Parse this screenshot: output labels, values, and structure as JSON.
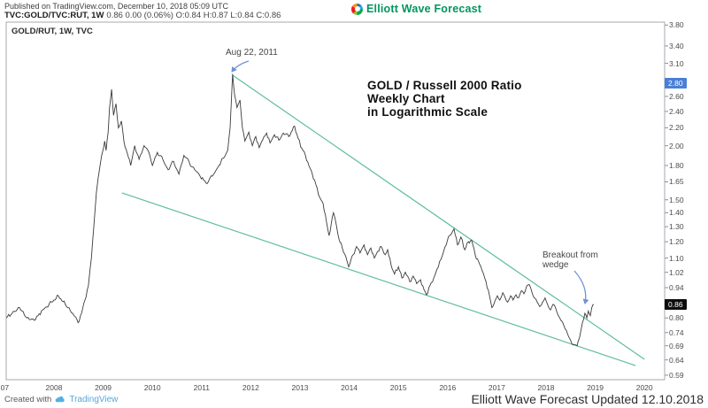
{
  "header": {
    "published_line": "Published on TradingView.com, December 10, 2018 05:09 UTC",
    "symbol_bold": "TVC:GOLD/TVC:RUT, 1W",
    "quote_line": "0.86 0.00 (0.06%) O:0.84 H:0.87 L:0.84 C:0.86",
    "brand": "Elliott Wave Forecast"
  },
  "chart": {
    "legend": "GOLD/RUT, 1W, TVC",
    "annotations": {
      "peak_label": "Aug 22, 2011",
      "title_line1": "GOLD / Russell 2000 Ratio",
      "title_line2": "Weekly Chart",
      "title_line3": "in Logarithmic Scale",
      "breakout_line1": "Breakout from",
      "breakout_line2": "wedge"
    }
  },
  "footer": {
    "created_with": "Created with",
    "tradingview": "TradingView",
    "credit": "Elliott Wave Forecast Updated 12.10.2018"
  },
  "chart_data": {
    "type": "line",
    "title": "GOLD / Russell 2000 Ratio Weekly Chart in Logarithmic Scale",
    "symbol": "TVC:GOLD/TVC:RUT",
    "timeframe": "1W",
    "scale": "logarithmic",
    "ohlc": {
      "open": 0.84,
      "high": 0.87,
      "low": 0.84,
      "close": 0.86,
      "change": "0.00",
      "change_pct": "0.06%"
    },
    "colors": {
      "trendline": "#5fbda1",
      "series": "#3a3b3d",
      "arrow": "#7191d1",
      "badge_blue": "#4a7fd6",
      "badge_black": "#0d0d0d",
      "brand_green": "#00965e",
      "tradingview_blue": "#54a8dd"
    },
    "x_ticks": [
      {
        "label": "07",
        "year": 2007
      },
      {
        "label": "2008",
        "year": 2008
      },
      {
        "label": "2009",
        "year": 2009
      },
      {
        "label": "2010",
        "year": 2010
      },
      {
        "label": "2011",
        "year": 2011
      },
      {
        "label": "2012",
        "year": 2012
      },
      {
        "label": "2013",
        "year": 2013
      },
      {
        "label": "2014",
        "year": 2014
      },
      {
        "label": "2015",
        "year": 2015
      },
      {
        "label": "2016",
        "year": 2016
      },
      {
        "label": "2017",
        "year": 2017
      },
      {
        "label": "2018",
        "year": 2018
      },
      {
        "label": "2019",
        "year": 2019
      },
      {
        "label": "2020",
        "year": 2020
      }
    ],
    "y_ticks": [
      {
        "label": "3.80",
        "value": 3.8
      },
      {
        "label": "3.40",
        "value": 3.4
      },
      {
        "label": "3.10",
        "value": 3.1
      },
      {
        "label": "2.80",
        "value": 2.8,
        "badge": "blue"
      },
      {
        "label": "2.60",
        "value": 2.6
      },
      {
        "label": "2.40",
        "value": 2.4
      },
      {
        "label": "2.20",
        "value": 2.2
      },
      {
        "label": "2.00",
        "value": 2.0
      },
      {
        "label": "1.80",
        "value": 1.8
      },
      {
        "label": "1.65",
        "value": 1.65
      },
      {
        "label": "1.50",
        "value": 1.5
      },
      {
        "label": "1.40",
        "value": 1.4
      },
      {
        "label": "1.30",
        "value": 1.3
      },
      {
        "label": "1.20",
        "value": 1.2
      },
      {
        "label": "1.10",
        "value": 1.1
      },
      {
        "label": "1.02",
        "value": 1.02
      },
      {
        "label": "0.94",
        "value": 0.94
      },
      {
        "label": "0.86",
        "value": 0.86,
        "badge": "black"
      },
      {
        "label": "0.80",
        "value": 0.8
      },
      {
        "label": "0.74",
        "value": 0.74
      },
      {
        "label": "0.69",
        "value": 0.69
      },
      {
        "label": "0.64",
        "value": 0.64
      },
      {
        "label": "0.59",
        "value": 0.59
      }
    ],
    "trendlines": [
      {
        "name": "wedge-upper-trendline",
        "from": [
          2011.63,
          2.91
        ],
        "to": [
          2020.0,
          0.642
        ]
      },
      {
        "name": "wedge-lower-trendline",
        "from": [
          2009.38,
          1.556
        ],
        "to": [
          2019.82,
          0.621
        ]
      }
    ],
    "events": [
      {
        "label": "Aug 22, 2011",
        "year": 2011.63,
        "value": 2.93
      },
      {
        "label": "Breakout from wedge",
        "year": 2018.79,
        "value": 0.82
      }
    ],
    "series": [
      [
        2007.03,
        0.8
      ],
      [
        2007.15,
        0.82
      ],
      [
        2007.3,
        0.845
      ],
      [
        2007.45,
        0.8
      ],
      [
        2007.6,
        0.79
      ],
      [
        2007.77,
        0.835
      ],
      [
        2007.95,
        0.87
      ],
      [
        2008.09,
        0.9
      ],
      [
        2008.23,
        0.86
      ],
      [
        2008.38,
        0.82
      ],
      [
        2008.49,
        0.78
      ],
      [
        2008.56,
        0.82
      ],
      [
        2008.63,
        0.88
      ],
      [
        2008.7,
        0.95
      ],
      [
        2008.76,
        1.1
      ],
      [
        2008.81,
        1.3
      ],
      [
        2008.86,
        1.55
      ],
      [
        2008.92,
        1.75
      ],
      [
        2008.97,
        1.9
      ],
      [
        2009.03,
        2.05
      ],
      [
        2009.06,
        1.95
      ],
      [
        2009.1,
        2.15
      ],
      [
        2009.13,
        2.45
      ],
      [
        2009.17,
        2.7
      ],
      [
        2009.21,
        2.35
      ],
      [
        2009.26,
        2.5
      ],
      [
        2009.31,
        2.2
      ],
      [
        2009.37,
        2.28
      ],
      [
        2009.42,
        2.05
      ],
      [
        2009.49,
        1.92
      ],
      [
        2009.56,
        1.8
      ],
      [
        2009.64,
        2.0
      ],
      [
        2009.73,
        1.86
      ],
      [
        2009.83,
        2.0
      ],
      [
        2009.92,
        1.94
      ],
      [
        2010.0,
        1.8
      ],
      [
        2010.1,
        1.93
      ],
      [
        2010.21,
        1.86
      ],
      [
        2010.32,
        1.76
      ],
      [
        2010.43,
        1.84
      ],
      [
        2010.54,
        1.72
      ],
      [
        2010.64,
        1.9
      ],
      [
        2010.75,
        1.83
      ],
      [
        2010.86,
        1.76
      ],
      [
        2010.97,
        1.7
      ],
      [
        2011.09,
        1.64
      ],
      [
        2011.22,
        1.7
      ],
      [
        2011.35,
        1.8
      ],
      [
        2011.44,
        1.87
      ],
      [
        2011.53,
        1.95
      ],
      [
        2011.58,
        2.2
      ],
      [
        2011.63,
        2.93
      ],
      [
        2011.67,
        2.62
      ],
      [
        2011.72,
        2.45
      ],
      [
        2011.78,
        2.55
      ],
      [
        2011.83,
        2.2
      ],
      [
        2011.88,
        2.05
      ],
      [
        2011.96,
        2.15
      ],
      [
        2012.03,
        2.0
      ],
      [
        2012.1,
        2.1
      ],
      [
        2012.17,
        1.98
      ],
      [
        2012.24,
        2.06
      ],
      [
        2012.32,
        2.14
      ],
      [
        2012.39,
        2.03
      ],
      [
        2012.48,
        2.12
      ],
      [
        2012.57,
        2.06
      ],
      [
        2012.66,
        2.14
      ],
      [
        2012.77,
        2.1
      ],
      [
        2012.89,
        2.22
      ],
      [
        2012.96,
        2.08
      ],
      [
        2013.04,
        1.97
      ],
      [
        2013.11,
        1.9
      ],
      [
        2013.18,
        1.8
      ],
      [
        2013.25,
        1.72
      ],
      [
        2013.32,
        1.63
      ],
      [
        2013.4,
        1.52
      ],
      [
        2013.47,
        1.47
      ],
      [
        2013.54,
        1.33
      ],
      [
        2013.59,
        1.24
      ],
      [
        2013.68,
        1.4
      ],
      [
        2013.74,
        1.31
      ],
      [
        2013.79,
        1.22
      ],
      [
        2013.86,
        1.16
      ],
      [
        2013.93,
        1.11
      ],
      [
        2013.99,
        1.05
      ],
      [
        2014.08,
        1.12
      ],
      [
        2014.15,
        1.17
      ],
      [
        2014.22,
        1.13
      ],
      [
        2014.3,
        1.18
      ],
      [
        2014.37,
        1.12
      ],
      [
        2014.44,
        1.16
      ],
      [
        2014.51,
        1.1
      ],
      [
        2014.58,
        1.14
      ],
      [
        2014.65,
        1.17
      ],
      [
        2014.73,
        1.12
      ],
      [
        2014.78,
        1.15
      ],
      [
        2014.85,
        1.06
      ],
      [
        2014.92,
        1.01
      ],
      [
        2015.0,
        1.05
      ],
      [
        2015.07,
        0.99
      ],
      [
        2015.14,
        1.02
      ],
      [
        2015.23,
        0.97
      ],
      [
        2015.3,
        1.0
      ],
      [
        2015.37,
        0.96
      ],
      [
        2015.45,
        0.98
      ],
      [
        2015.52,
        0.93
      ],
      [
        2015.57,
        0.905
      ],
      [
        2015.64,
        0.95
      ],
      [
        2015.72,
        0.99
      ],
      [
        2015.79,
        1.04
      ],
      [
        2015.86,
        1.09
      ],
      [
        2015.95,
        1.17
      ],
      [
        2016.04,
        1.24
      ],
      [
        2016.13,
        1.285
      ],
      [
        2016.2,
        1.18
      ],
      [
        2016.27,
        1.23
      ],
      [
        2016.35,
        1.15
      ],
      [
        2016.42,
        1.2
      ],
      [
        2016.49,
        1.21
      ],
      [
        2016.56,
        1.12
      ],
      [
        2016.63,
        1.08
      ],
      [
        2016.7,
        1.03
      ],
      [
        2016.78,
        0.97
      ],
      [
        2016.85,
        0.9
      ],
      [
        2016.9,
        0.845
      ],
      [
        2016.96,
        0.875
      ],
      [
        2017.01,
        0.9
      ],
      [
        2017.06,
        0.88
      ],
      [
        2017.12,
        0.915
      ],
      [
        2017.17,
        0.89
      ],
      [
        2017.22,
        0.87
      ],
      [
        2017.28,
        0.9
      ],
      [
        2017.33,
        0.88
      ],
      [
        2017.39,
        0.905
      ],
      [
        2017.44,
        0.89
      ],
      [
        2017.5,
        0.925
      ],
      [
        2017.55,
        0.91
      ],
      [
        2017.6,
        0.945
      ],
      [
        2017.66,
        0.955
      ],
      [
        2017.71,
        0.92
      ],
      [
        2017.76,
        0.89
      ],
      [
        2017.82,
        0.87
      ],
      [
        2017.87,
        0.85
      ],
      [
        2017.93,
        0.87
      ],
      [
        2017.98,
        0.89
      ],
      [
        2018.03,
        0.86
      ],
      [
        2018.09,
        0.835
      ],
      [
        2018.14,
        0.86
      ],
      [
        2018.2,
        0.84
      ],
      [
        2018.25,
        0.81
      ],
      [
        2018.3,
        0.79
      ],
      [
        2018.36,
        0.77
      ],
      [
        2018.41,
        0.75
      ],
      [
        2018.47,
        0.72
      ],
      [
        2018.52,
        0.7
      ],
      [
        2018.57,
        0.695
      ],
      [
        2018.63,
        0.69
      ],
      [
        2018.68,
        0.72
      ],
      [
        2018.74,
        0.78
      ],
      [
        2018.79,
        0.82
      ],
      [
        2018.83,
        0.8
      ],
      [
        2018.86,
        0.83
      ],
      [
        2018.9,
        0.81
      ],
      [
        2018.93,
        0.845
      ],
      [
        2018.97,
        0.86
      ]
    ]
  }
}
